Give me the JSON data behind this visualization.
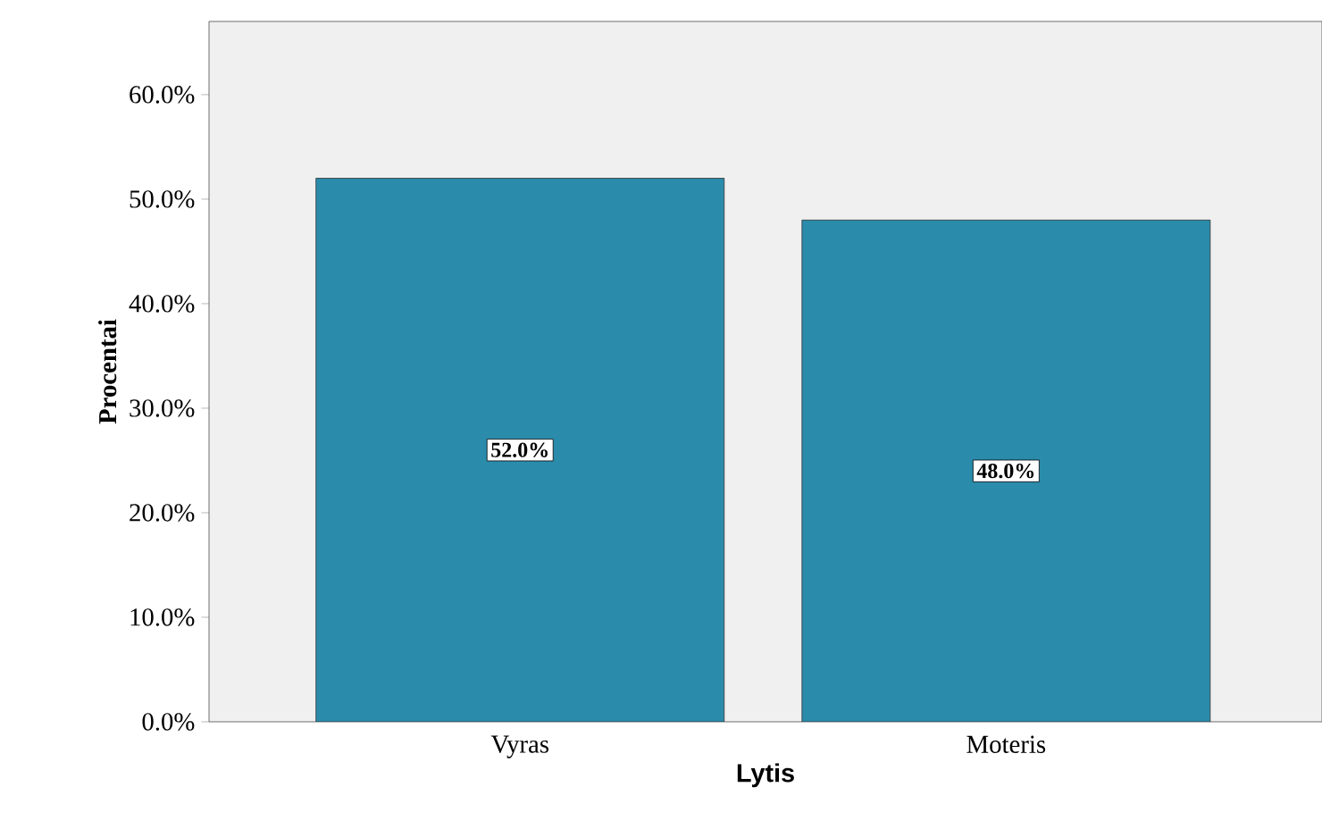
{
  "chart_data": {
    "type": "bar",
    "xlabel": "Lytis",
    "ylabel": "Procentai",
    "categories": [
      "Vyras",
      "Moteris"
    ],
    "values": [
      52.0,
      48.0
    ],
    "value_labels": [
      "52.0%",
      "48.0%"
    ],
    "color": "#2a8bab",
    "ylim": [
      0,
      67
    ],
    "yticks": [
      {
        "value": 0,
        "label": "0.0%"
      },
      {
        "value": 10,
        "label": "10.0%"
      },
      {
        "value": 20,
        "label": "20.0%"
      },
      {
        "value": 30,
        "label": "30.0%"
      },
      {
        "value": 40,
        "label": "40.0%"
      },
      {
        "value": 50,
        "label": "50.0%"
      },
      {
        "value": 60,
        "label": "60.0%"
      }
    ],
    "line_style": "solid"
  }
}
